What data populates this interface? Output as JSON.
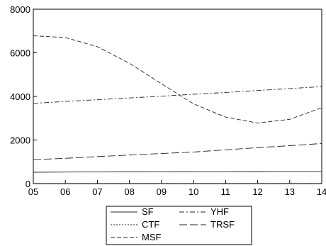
{
  "chart_data": {
    "type": "line",
    "categories": [
      "05",
      "06",
      "07",
      "08",
      "09",
      "10",
      "11",
      "12",
      "13",
      "14"
    ],
    "ylim": [
      0,
      8000
    ],
    "yticks": [
      0,
      2000,
      4000,
      6000,
      8000
    ],
    "grid": false,
    "legend_position": "bottom-center",
    "series": [
      {
        "name": "SF",
        "dash": "solid",
        "values": [
          520,
          530,
          540,
          545,
          548,
          550,
          552,
          553,
          554,
          555
        ]
      },
      {
        "name": "YHF",
        "dash": "dashdot",
        "values": [
          3680,
          3770,
          3850,
          3930,
          4010,
          4100,
          4180,
          4270,
          4360,
          4450
        ]
      },
      {
        "name": "CTF",
        "dash": "dotted",
        "values": [
          10,
          10,
          10,
          10,
          10,
          10,
          10,
          10,
          10,
          10
        ]
      },
      {
        "name": "TRSF",
        "dash": "longdash",
        "values": [
          1100,
          1160,
          1240,
          1310,
          1380,
          1450,
          1550,
          1650,
          1740,
          1840
        ]
      },
      {
        "name": "MSF",
        "dash": "dashed",
        "values": [
          6780,
          6700,
          6280,
          5520,
          4580,
          3660,
          3050,
          2780,
          2950,
          3480
        ]
      }
    ]
  }
}
